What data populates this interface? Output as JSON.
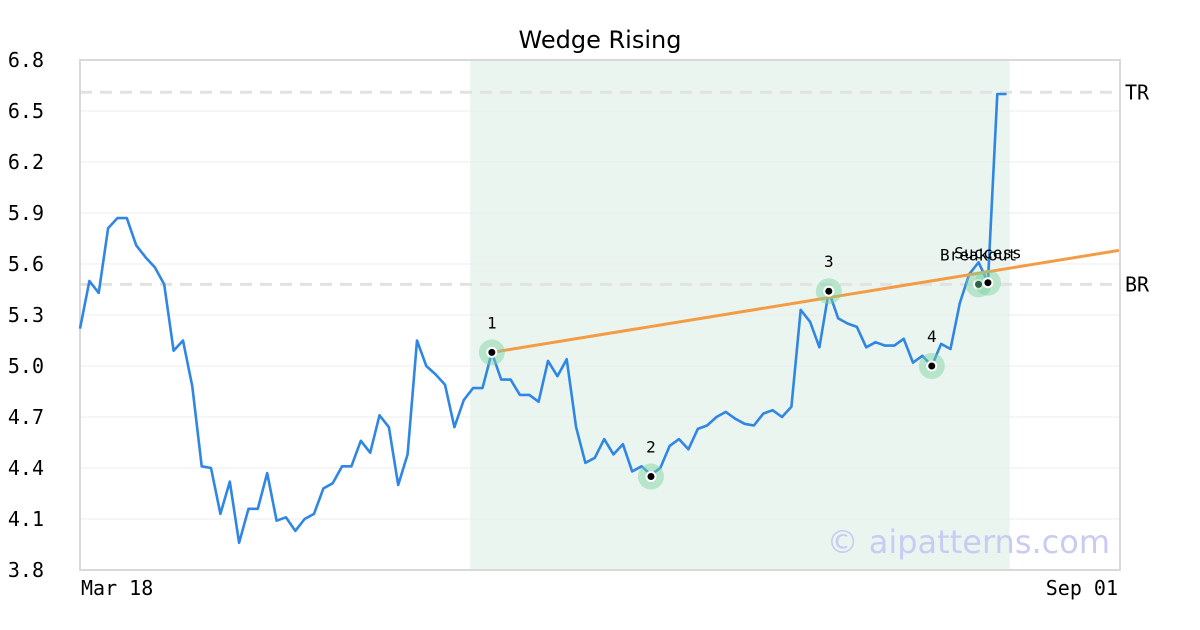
{
  "chart_data": {
    "type": "line",
    "title": "Wedge Rising",
    "xlabel": "",
    "ylabel": "",
    "ylim": [
      3.8,
      6.8
    ],
    "y_ticks": [
      "6.8",
      "6.5",
      "6.2",
      "5.9",
      "5.6",
      "5.3",
      "5.0",
      "4.7",
      "4.4",
      "4.1",
      "3.8"
    ],
    "x_tick_labels": {
      "start": "Mar 18",
      "end": "Sep 01"
    },
    "grid": true,
    "series": [
      {
        "color": "#2f86e3",
        "values": [
          5.22,
          5.5,
          5.43,
          5.81,
          5.87,
          5.87,
          5.71,
          5.64,
          5.58,
          5.48,
          5.09,
          5.15,
          4.88,
          4.41,
          4.4,
          4.13,
          4.32,
          3.96,
          4.16,
          4.16,
          4.37,
          4.09,
          4.11,
          4.03,
          4.1,
          4.13,
          4.28,
          4.31,
          4.41,
          4.41,
          4.56,
          4.49,
          4.71,
          4.64,
          4.3,
          4.48,
          5.15,
          5.0,
          4.95,
          4.89,
          4.64,
          4.8,
          4.87,
          4.87,
          5.08,
          4.92,
          4.92,
          4.83,
          4.83,
          4.79,
          5.03,
          4.94,
          5.04,
          4.64,
          4.43,
          4.46,
          4.57,
          4.48,
          4.54,
          4.38,
          4.41,
          4.36,
          4.4,
          4.53,
          4.57,
          4.51,
          4.63,
          4.65,
          4.7,
          4.73,
          4.69,
          4.66,
          4.65,
          4.72,
          4.74,
          4.7,
          4.76,
          5.33,
          5.26,
          5.11,
          5.44,
          5.28,
          5.25,
          5.23,
          5.11,
          5.14,
          5.12,
          5.12,
          5.16,
          5.02,
          5.06,
          5.0,
          5.13,
          5.1,
          5.37,
          5.54,
          5.61,
          5.49,
          6.6,
          6.6
        ]
      }
    ],
    "trendline": {
      "color": "#f39c45",
      "from": {
        "index": 44,
        "y": 5.08
      },
      "to": {
        "index": 111,
        "y": 5.68
      }
    },
    "highlight_region": {
      "from_index": 42,
      "to_index": 99,
      "color": "#eaf5f0"
    },
    "reference_lines": [
      {
        "label": "TR",
        "y": 6.61
      },
      {
        "label": "BR",
        "y": 5.48
      }
    ],
    "points": [
      {
        "label": "1",
        "index": 44,
        "y": 5.08,
        "label_side": "above"
      },
      {
        "label": "2",
        "index": 61,
        "y": 4.35,
        "label_side": "above"
      },
      {
        "label": "3",
        "index": 80,
        "y": 5.44,
        "label_side": "above"
      },
      {
        "label": "4",
        "index": 91,
        "y": 5.0,
        "label_side": "above"
      },
      {
        "label": "Breakout",
        "index": 96,
        "y": 5.48,
        "label_side": "above"
      },
      {
        "label": "Success",
        "index": 97,
        "y": 5.49,
        "label_side": "above"
      }
    ],
    "watermark": "© aipatterns.com"
  }
}
